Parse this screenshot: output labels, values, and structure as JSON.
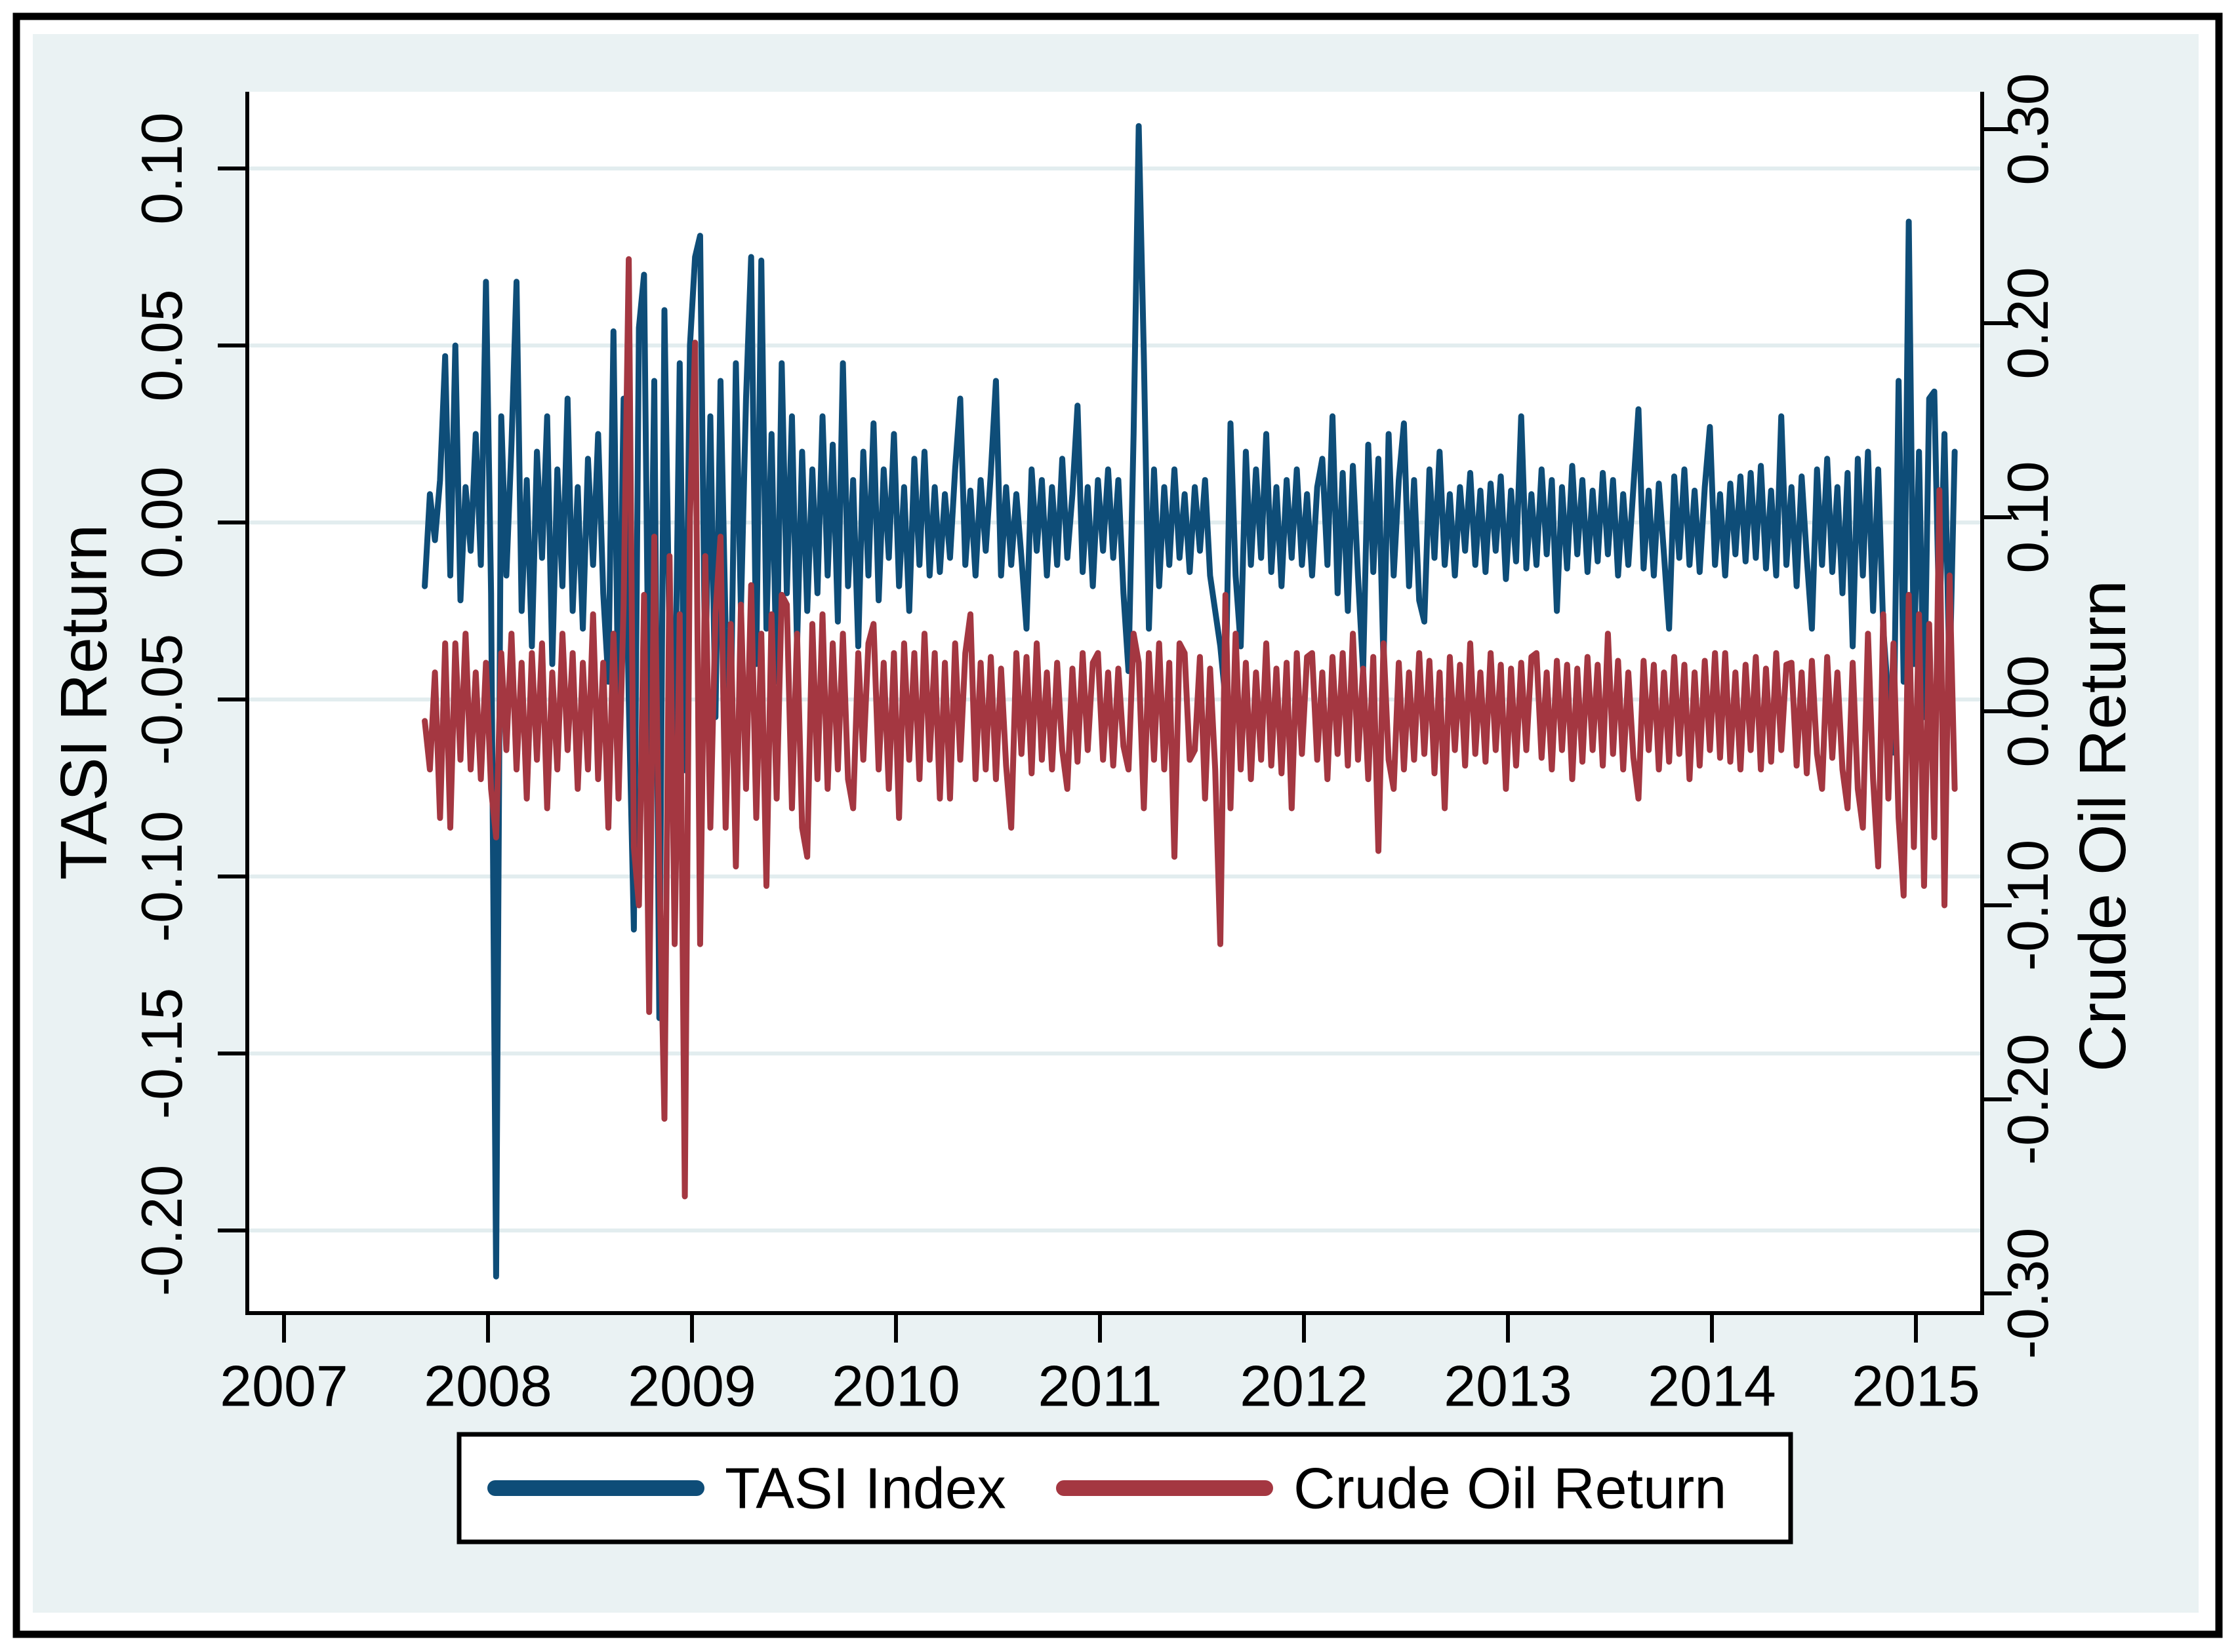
{
  "figure": {
    "background_color": "#eaf2f3",
    "plot_background_color": "#ffffff",
    "frame_color": "#000000",
    "gridline_color": "#e2edef"
  },
  "chart_data": {
    "type": "line",
    "title": "",
    "grid": "horizontal-on",
    "legend_position": "bottom-center",
    "x_axis": {
      "label": "",
      "tick_values": [
        2007,
        2008,
        2009,
        2010,
        2011,
        2012,
        2013,
        2014,
        2015
      ],
      "tick_labels": [
        "2007",
        "2008",
        "2009",
        "2010",
        "2011",
        "2012",
        "2013",
        "2014",
        "2015"
      ],
      "range": [
        2006.82,
        2015.33
      ]
    },
    "left_axis": {
      "label": "TASI Return",
      "tick_values": [
        0.1,
        0.05,
        0.0,
        -0.05,
        -0.1,
        -0.15,
        -0.2
      ],
      "tick_labels": [
        "0.10",
        "0.05",
        "0.00",
        "-0.05",
        "-0.10",
        "-0.15",
        "-0.20"
      ],
      "range": [
        -0.2233,
        0.1217
      ]
    },
    "right_axis": {
      "label": "Crude Oil Return",
      "tick_values": [
        0.3,
        0.2,
        0.1,
        0.0,
        -0.1,
        -0.2,
        -0.3
      ],
      "tick_labels": [
        "0.30",
        "0.20",
        "0.10",
        "0.00",
        "-0.10",
        "-0.20",
        "-0.30"
      ],
      "range": [
        -0.3101,
        0.3193
      ]
    },
    "legend": [
      {
        "label": "TASI Index",
        "color": "#0e4d78"
      },
      {
        "label": "Crude Oil Return",
        "color": "#a43741"
      }
    ],
    "series_meta": {
      "x_start": 2007.69,
      "x_step": 0.025,
      "value_unit": 0.001,
      "note": "values_milli are returns in thousandths; x is decimal year"
    },
    "series": [
      {
        "name": "TASI Index",
        "axis": "left",
        "color": "#0e4d78",
        "values_milli": [
          -18,
          8,
          -5,
          12,
          47,
          -15,
          50,
          -22,
          10,
          -8,
          25,
          -12,
          68,
          -20,
          -213,
          30,
          -15,
          22,
          68,
          -25,
          12,
          -35,
          20,
          -10,
          30,
          -40,
          15,
          -18,
          35,
          -25,
          10,
          -30,
          18,
          -12,
          25,
          -20,
          -45,
          54,
          -60,
          35,
          -50,
          -115,
          55,
          70,
          -65,
          40,
          -140,
          60,
          -35,
          -60,
          45,
          -70,
          50,
          75,
          81,
          -45,
          30,
          -55,
          40,
          -30,
          -55,
          45,
          -25,
          35,
          75,
          -40,
          74,
          -30,
          25,
          -45,
          45,
          -20,
          30,
          -35,
          20,
          -25,
          15,
          -20,
          30,
          -15,
          22,
          -28,
          45,
          -18,
          12,
          -35,
          20,
          -15,
          28,
          -22,
          15,
          -10,
          25,
          -18,
          10,
          -25,
          18,
          -12,
          20,
          -15,
          10,
          -14,
          8,
          -10,
          15,
          35,
          -12,
          9,
          -15,
          12,
          -8,
          14,
          40,
          -15,
          10,
          -12,
          8,
          -10,
          -30,
          15,
          -8,
          12,
          -15,
          10,
          -12,
          18,
          -10,
          8,
          33,
          -14,
          10,
          -18,
          12,
          -8,
          15,
          -10,
          12,
          -20,
          -42,
          25,
          112,
          47,
          -30,
          15,
          -18,
          10,
          -12,
          15,
          -10,
          8,
          -14,
          10,
          -8,
          12,
          -15,
          -25,
          -35,
          -50,
          28,
          -15,
          -35,
          20,
          -12,
          15,
          -10,
          25,
          -14,
          10,
          -18,
          12,
          -10,
          15,
          -12,
          8,
          -15,
          10,
          18,
          -12,
          30,
          -20,
          14,
          -25,
          16,
          -15,
          -42,
          22,
          -14,
          18,
          -40,
          25,
          -15,
          12,
          28,
          -18,
          12,
          -22,
          -28,
          15,
          -10,
          20,
          -12,
          8,
          -15,
          10,
          -8,
          14,
          -12,
          9,
          -14,
          11,
          -8,
          13,
          -16,
          9,
          -11,
          30,
          -13,
          8,
          -12,
          15,
          -9,
          12,
          -25,
          10,
          -13,
          16,
          -9,
          12,
          -14,
          9,
          -11,
          14,
          -9,
          12,
          -15,
          8,
          -12,
          10,
          32,
          -13,
          9,
          -15,
          11,
          -9,
          -30,
          13,
          -10,
          15,
          -12,
          9,
          -14,
          10,
          27,
          -12,
          8,
          -15,
          11,
          -9,
          13,
          -11,
          14,
          -10,
          16,
          -13,
          9,
          -15,
          30,
          -12,
          10,
          -18,
          13,
          -10,
          -30,
          15,
          -12,
          18,
          -14,
          10,
          -20,
          14,
          -35,
          18,
          -15,
          20,
          -25,
          15,
          -30,
          -50,
          -65,
          40,
          -45,
          85,
          -40,
          20,
          -55,
          35,
          37,
          -30,
          25,
          -45,
          20
        ]
      },
      {
        "name": "Crude Oil Return",
        "axis": "right",
        "color": "#a43741",
        "values_milli": [
          -5,
          -30,
          20,
          -55,
          35,
          -60,
          35,
          -25,
          40,
          -30,
          20,
          -35,
          25,
          -40,
          -65,
          30,
          -20,
          40,
          -30,
          25,
          -45,
          30,
          -25,
          35,
          -50,
          20,
          -30,
          40,
          -20,
          30,
          -40,
          25,
          -30,
          50,
          -35,
          25,
          -60,
          40,
          -45,
          55,
          233,
          -70,
          -100,
          60,
          -155,
          90,
          -80,
          -210,
          80,
          -120,
          50,
          -250,
          100,
          190,
          -120,
          80,
          -60,
          50,
          90,
          -60,
          45,
          -80,
          55,
          -40,
          65,
          -55,
          40,
          -90,
          50,
          -45,
          60,
          55,
          -50,
          40,
          -60,
          -75,
          45,
          -35,
          50,
          -40,
          35,
          -30,
          40,
          -35,
          -50,
          30,
          -25,
          35,
          45,
          -30,
          25,
          -40,
          30,
          -55,
          35,
          -25,
          30,
          -35,
          40,
          -25,
          30,
          -45,
          25,
          -45,
          35,
          -25,
          30,
          50,
          -35,
          25,
          -30,
          28,
          -35,
          22,
          -28,
          -60,
          30,
          -22,
          28,
          -32,
          35,
          -25,
          20,
          -30,
          25,
          -20,
          -40,
          22,
          -26,
          30,
          -20,
          25,
          30,
          -25,
          20,
          -28,
          22,
          -18,
          -30,
          40,
          25,
          -50,
          30,
          -25,
          35,
          -30,
          25,
          -75,
          35,
          30,
          -25,
          -20,
          28,
          -45,
          22,
          -30,
          -120,
          60,
          -50,
          40,
          -30,
          25,
          -35,
          20,
          -25,
          35,
          -28,
          22,
          -32,
          25,
          -50,
          30,
          -22,
          28,
          30,
          -25,
          20,
          -35,
          28,
          -22,
          30,
          -28,
          40,
          -25,
          22,
          -35,
          28,
          -72,
          35,
          -25,
          -40,
          25,
          -30,
          20,
          -25,
          30,
          -22,
          26,
          -32,
          20,
          -50,
          28,
          -20,
          24,
          -28,
          35,
          -22,
          20,
          -26,
          30,
          -20,
          24,
          -40,
          22,
          -28,
          25,
          -20,
          28,
          30,
          -24,
          20,
          -30,
          26,
          -20,
          24,
          -35,
          22,
          -26,
          28,
          -20,
          24,
          -28,
          40,
          -22,
          26,
          -30,
          20,
          -24,
          -45,
          26,
          -20,
          24,
          -30,
          20,
          -26,
          28,
          -22,
          24,
          -35,
          20,
          -28,
          26,
          -20,
          30,
          -24,
          30,
          -26,
          20,
          -30,
          24,
          -20,
          28,
          -30,
          22,
          -26,
          30,
          -20,
          24,
          25,
          -28,
          20,
          -32,
          26,
          -22,
          -40,
          28,
          -24,
          20,
          -30,
          -50,
          25,
          -40,
          -60,
          40,
          -35,
          -80,
          50,
          -45,
          35,
          -55,
          -95,
          60,
          -70,
          50,
          -90,
          45,
          -65,
          114,
          -100,
          70,
          -40
        ]
      }
    ]
  }
}
